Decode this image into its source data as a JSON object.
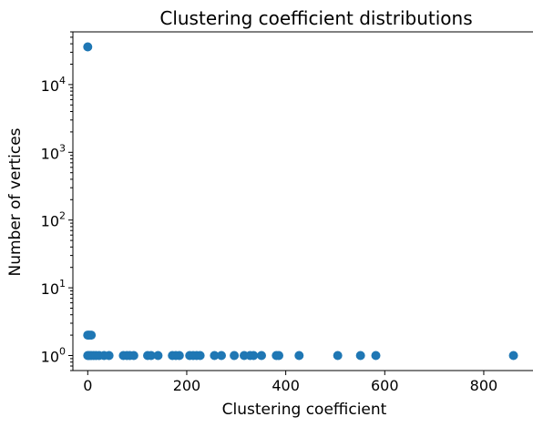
{
  "chart_data": {
    "type": "scatter",
    "title": "Clustering coefficient distributions",
    "xlabel": "Clustering coefficient",
    "ylabel": "Number of vertices",
    "xlim": [
      -30,
      905
    ],
    "ylim": [
      0.6,
      60000
    ],
    "yscale": "log",
    "grid": false,
    "x_ticks": [
      {
        "value": 0,
        "label": "0"
      },
      {
        "value": 200,
        "label": "200"
      },
      {
        "value": 400,
        "label": "400"
      },
      {
        "value": 600,
        "label": "600"
      },
      {
        "value": 800,
        "label": "800"
      }
    ],
    "y_ticks": [
      {
        "value": 1,
        "base": "10",
        "exp": "0"
      },
      {
        "value": 10,
        "base": "10",
        "exp": "1"
      },
      {
        "value": 100,
        "base": "10",
        "exp": "2"
      },
      {
        "value": 1000,
        "base": "10",
        "exp": "3"
      },
      {
        "value": 10000,
        "base": "10",
        "exp": "4"
      }
    ],
    "marker_color": "#1f77b4",
    "points": [
      {
        "x": 0,
        "y": 36000
      },
      {
        "x": 0,
        "y": 2
      },
      {
        "x": 3,
        "y": 2
      },
      {
        "x": 7,
        "y": 2
      },
      {
        "x": 0,
        "y": 1
      },
      {
        "x": 3,
        "y": 1
      },
      {
        "x": 7,
        "y": 1
      },
      {
        "x": 12,
        "y": 1
      },
      {
        "x": 17,
        "y": 1
      },
      {
        "x": 23,
        "y": 1
      },
      {
        "x": 33,
        "y": 1
      },
      {
        "x": 43,
        "y": 1
      },
      {
        "x": 72,
        "y": 1
      },
      {
        "x": 79,
        "y": 1
      },
      {
        "x": 85,
        "y": 1
      },
      {
        "x": 93,
        "y": 1
      },
      {
        "x": 121,
        "y": 1
      },
      {
        "x": 128,
        "y": 1
      },
      {
        "x": 142,
        "y": 1
      },
      {
        "x": 171,
        "y": 1
      },
      {
        "x": 178,
        "y": 1
      },
      {
        "x": 185,
        "y": 1
      },
      {
        "x": 206,
        "y": 1
      },
      {
        "x": 213,
        "y": 1
      },
      {
        "x": 220,
        "y": 1
      },
      {
        "x": 227,
        "y": 1
      },
      {
        "x": 256,
        "y": 1
      },
      {
        "x": 270,
        "y": 1
      },
      {
        "x": 296,
        "y": 1
      },
      {
        "x": 316,
        "y": 1
      },
      {
        "x": 328,
        "y": 1
      },
      {
        "x": 335,
        "y": 1
      },
      {
        "x": 351,
        "y": 1
      },
      {
        "x": 381,
        "y": 1
      },
      {
        "x": 386,
        "y": 1
      },
      {
        "x": 427,
        "y": 1
      },
      {
        "x": 505,
        "y": 1
      },
      {
        "x": 551,
        "y": 1
      },
      {
        "x": 582,
        "y": 1
      },
      {
        "x": 860,
        "y": 1
      }
    ]
  }
}
